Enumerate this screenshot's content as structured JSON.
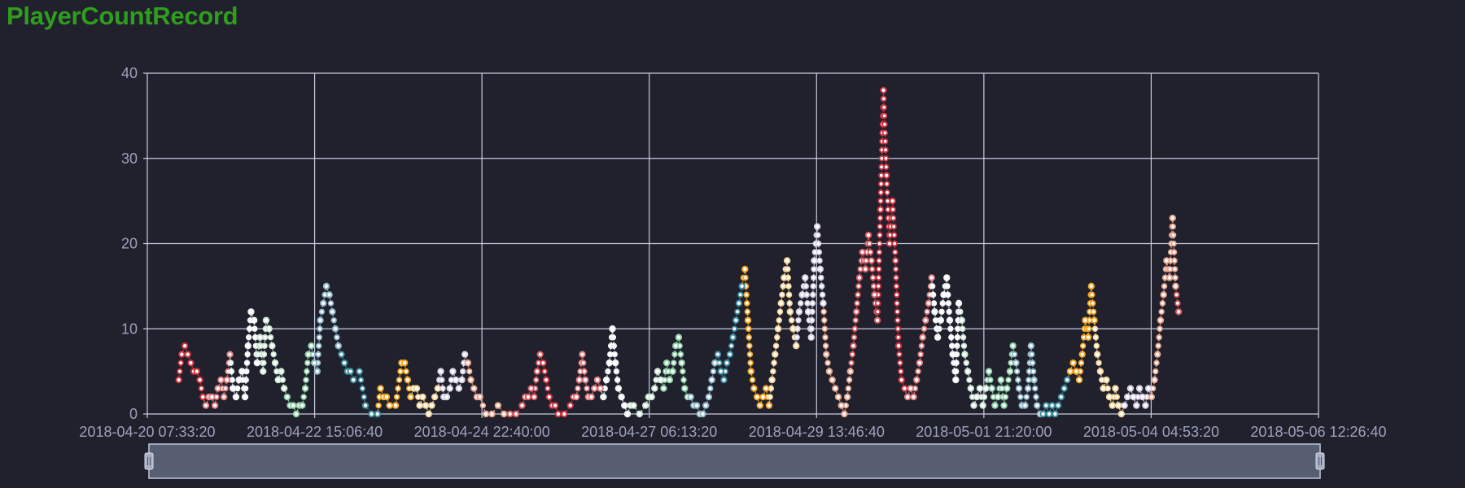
{
  "title": "PlayerCountRecord",
  "colors": {
    "background": "#21202d",
    "grid": "#c7cde0",
    "title": "#2f9d1e",
    "axis_text": "#9ba3bd",
    "slider_fill": "#575e72",
    "slider_border": "#b8bfd4",
    "palette": [
      "#d23240",
      "#e57e80",
      "#f0f4f6",
      "#cfe7d6",
      "#8fd2a8",
      "#8fb7c7",
      "#3a8ea0",
      "#f5a623",
      "#f6d79a",
      "#d8d2e6",
      "#e8a38b",
      "#d8595f"
    ]
  },
  "chart_data": {
    "type": "scatter",
    "title": "PlayerCountRecord",
    "xlabel": "",
    "ylabel": "",
    "grid": true,
    "legend": "none",
    "x_tick_labels": [
      "2018-04-20 07:33:20",
      "2018-04-22 15:06:40",
      "2018-04-24 22:40:00",
      "2018-04-27 06:13:20",
      "2018-04-29 13:46:40",
      "2018-05-01 21:20:00",
      "2018-05-04 04:53:20",
      "2018-05-06 12:26:40"
    ],
    "y_ticks": [
      0,
      10,
      20,
      30,
      40
    ],
    "xlim": [
      "2018-04-20 07:33:20",
      "2018-05-06 12:26:40"
    ],
    "ylim": [
      0,
      40
    ],
    "data_zoom": {
      "start_percent": 0,
      "end_percent": 100
    },
    "points_date_value": [
      [
        "2018-04-20 18:00",
        4
      ],
      [
        "2018-04-20 19:00",
        7
      ],
      [
        "2018-04-20 20:00",
        8
      ],
      [
        "2018-04-20 21:00",
        7
      ],
      [
        "2018-04-20 22:00",
        6
      ],
      [
        "2018-04-20 23:00",
        5
      ],
      [
        "2018-04-21 00:00",
        5
      ],
      [
        "2018-04-21 01:00",
        4
      ],
      [
        "2018-04-21 02:00",
        2
      ],
      [
        "2018-04-21 03:00",
        1
      ],
      [
        "2018-04-21 04:00",
        2
      ],
      [
        "2018-04-21 05:00",
        2
      ],
      [
        "2018-04-21 06:00",
        1
      ],
      [
        "2018-04-21 07:00",
        3
      ],
      [
        "2018-04-21 08:00",
        4
      ],
      [
        "2018-04-21 09:00",
        2
      ],
      [
        "2018-04-21 10:00",
        4
      ],
      [
        "2018-04-21 11:00",
        7
      ],
      [
        "2018-04-21 12:00",
        3
      ],
      [
        "2018-04-21 13:00",
        2
      ],
      [
        "2018-04-21 14:00",
        4
      ],
      [
        "2018-04-21 15:00",
        5
      ],
      [
        "2018-04-21 16:00",
        2
      ],
      [
        "2018-04-21 17:00",
        8
      ],
      [
        "2018-04-21 18:00",
        12
      ],
      [
        "2018-04-21 19:00",
        11
      ],
      [
        "2018-04-21 20:00",
        6
      ],
      [
        "2018-04-21 21:00",
        9
      ],
      [
        "2018-04-21 22:00",
        5
      ],
      [
        "2018-04-21 23:00",
        11
      ],
      [
        "2018-04-22 00:00",
        10
      ],
      [
        "2018-04-22 01:00",
        8
      ],
      [
        "2018-04-22 02:00",
        6
      ],
      [
        "2018-04-22 03:00",
        4
      ],
      [
        "2018-04-22 04:00",
        5
      ],
      [
        "2018-04-22 05:00",
        3
      ],
      [
        "2018-04-22 06:00",
        2
      ],
      [
        "2018-04-22 07:00",
        1
      ],
      [
        "2018-04-22 08:00",
        1
      ],
      [
        "2018-04-22 09:00",
        0
      ],
      [
        "2018-04-22 10:00",
        1
      ],
      [
        "2018-04-22 11:00",
        1
      ],
      [
        "2018-04-22 12:00",
        3
      ],
      [
        "2018-04-22 13:00",
        7
      ],
      [
        "2018-04-22 14:00",
        8
      ],
      [
        "2018-04-22 15:00",
        6
      ],
      [
        "2018-04-22 16:00",
        5
      ],
      [
        "2018-04-22 17:00",
        11
      ],
      [
        "2018-04-22 18:00",
        13
      ],
      [
        "2018-04-22 19:00",
        15
      ],
      [
        "2018-04-22 20:00",
        14
      ],
      [
        "2018-04-22 21:00",
        12
      ],
      [
        "2018-04-22 22:00",
        10
      ],
      [
        "2018-04-22 23:00",
        8
      ],
      [
        "2018-04-23 00:00",
        7
      ],
      [
        "2018-04-23 01:00",
        6
      ],
      [
        "2018-04-23 02:00",
        5
      ],
      [
        "2018-04-23 03:00",
        5
      ],
      [
        "2018-04-23 04:00",
        4
      ],
      [
        "2018-04-23 06:00",
        5
      ],
      [
        "2018-04-23 08:00",
        1
      ],
      [
        "2018-04-23 10:00",
        0
      ],
      [
        "2018-04-23 12:00",
        0
      ],
      [
        "2018-04-23 13:00",
        3
      ],
      [
        "2018-04-23 14:00",
        2
      ],
      [
        "2018-04-23 15:00",
        2
      ],
      [
        "2018-04-23 16:00",
        1
      ],
      [
        "2018-04-23 18:00",
        1
      ],
      [
        "2018-04-23 20:00",
        6
      ],
      [
        "2018-04-23 21:00",
        6
      ],
      [
        "2018-04-23 22:00",
        4
      ],
      [
        "2018-04-23 23:00",
        2
      ],
      [
        "2018-04-24 00:00",
        3
      ],
      [
        "2018-04-24 01:00",
        3
      ],
      [
        "2018-04-24 02:00",
        1
      ],
      [
        "2018-04-24 03:00",
        2
      ],
      [
        "2018-04-24 04:00",
        1
      ],
      [
        "2018-04-24 05:00",
        0
      ],
      [
        "2018-04-24 06:00",
        1
      ],
      [
        "2018-04-24 07:00",
        2
      ],
      [
        "2018-04-24 08:00",
        3
      ],
      [
        "2018-04-24 09:00",
        5
      ],
      [
        "2018-04-24 10:00",
        2
      ],
      [
        "2018-04-24 11:00",
        2
      ],
      [
        "2018-04-24 12:00",
        3
      ],
      [
        "2018-04-24 13:00",
        5
      ],
      [
        "2018-04-24 14:00",
        4
      ],
      [
        "2018-04-24 15:00",
        3
      ],
      [
        "2018-04-24 16:00",
        4
      ],
      [
        "2018-04-24 17:00",
        7
      ],
      [
        "2018-04-24 18:00",
        6
      ],
      [
        "2018-04-24 19:00",
        4
      ],
      [
        "2018-04-24 20:00",
        3
      ],
      [
        "2018-04-24 21:00",
        2
      ],
      [
        "2018-04-24 22:00",
        2
      ],
      [
        "2018-04-25 00:00",
        0
      ],
      [
        "2018-04-25 02:00",
        0
      ],
      [
        "2018-04-25 04:00",
        1
      ],
      [
        "2018-04-25 06:00",
        0
      ],
      [
        "2018-04-25 08:00",
        0
      ],
      [
        "2018-04-25 10:00",
        0
      ],
      [
        "2018-04-25 12:00",
        1
      ],
      [
        "2018-04-25 13:00",
        2
      ],
      [
        "2018-04-25 14:00",
        2
      ],
      [
        "2018-04-25 15:00",
        3
      ],
      [
        "2018-04-25 16:00",
        2
      ],
      [
        "2018-04-25 17:00",
        5
      ],
      [
        "2018-04-25 18:00",
        7
      ],
      [
        "2018-04-25 19:00",
        6
      ],
      [
        "2018-04-25 20:00",
        4
      ],
      [
        "2018-04-25 21:00",
        2
      ],
      [
        "2018-04-25 22:00",
        1
      ],
      [
        "2018-04-25 23:00",
        1
      ],
      [
        "2018-04-26 00:00",
        0
      ],
      [
        "2018-04-26 02:00",
        0
      ],
      [
        "2018-04-26 04:00",
        1
      ],
      [
        "2018-04-26 05:00",
        2
      ],
      [
        "2018-04-26 06:00",
        2
      ],
      [
        "2018-04-26 07:00",
        4
      ],
      [
        "2018-04-26 08:00",
        7
      ],
      [
        "2018-04-26 09:00",
        4
      ],
      [
        "2018-04-26 10:00",
        2
      ],
      [
        "2018-04-26 11:00",
        2
      ],
      [
        "2018-04-26 12:00",
        3
      ],
      [
        "2018-04-26 13:00",
        4
      ],
      [
        "2018-04-26 14:00",
        3
      ],
      [
        "2018-04-26 15:00",
        2
      ],
      [
        "2018-04-26 16:00",
        4
      ],
      [
        "2018-04-26 17:00",
        6
      ],
      [
        "2018-04-26 18:00",
        10
      ],
      [
        "2018-04-26 19:00",
        6
      ],
      [
        "2018-04-26 20:00",
        3
      ],
      [
        "2018-04-26 21:00",
        2
      ],
      [
        "2018-04-26 22:00",
        1
      ],
      [
        "2018-04-26 23:00",
        0
      ],
      [
        "2018-04-27 00:00",
        1
      ],
      [
        "2018-04-27 01:00",
        1
      ],
      [
        "2018-04-27 03:00",
        0
      ],
      [
        "2018-04-27 05:00",
        1
      ],
      [
        "2018-04-27 06:00",
        2
      ],
      [
        "2018-04-27 07:00",
        2
      ],
      [
        "2018-04-27 08:00",
        3
      ],
      [
        "2018-04-27 09:00",
        5
      ],
      [
        "2018-04-27 10:00",
        4
      ],
      [
        "2018-04-27 11:00",
        3
      ],
      [
        "2018-04-27 12:00",
        6
      ],
      [
        "2018-04-27 13:00",
        4
      ],
      [
        "2018-04-27 14:00",
        5
      ],
      [
        "2018-04-27 15:00",
        8
      ],
      [
        "2018-04-27 16:00",
        9
      ],
      [
        "2018-04-27 17:00",
        6
      ],
      [
        "2018-04-27 18:00",
        3
      ],
      [
        "2018-04-27 19:00",
        2
      ],
      [
        "2018-04-27 20:00",
        2
      ],
      [
        "2018-04-27 21:00",
        1
      ],
      [
        "2018-04-27 22:00",
        1
      ],
      [
        "2018-04-27 23:00",
        0
      ],
      [
        "2018-04-28 00:00",
        0
      ],
      [
        "2018-04-28 01:00",
        1
      ],
      [
        "2018-04-28 02:00",
        2
      ],
      [
        "2018-04-28 03:00",
        4
      ],
      [
        "2018-04-28 04:00",
        6
      ],
      [
        "2018-04-28 05:00",
        7
      ],
      [
        "2018-04-28 06:00",
        5
      ],
      [
        "2018-04-28 07:00",
        4
      ],
      [
        "2018-04-28 08:00",
        6
      ],
      [
        "2018-04-28 09:00",
        7
      ],
      [
        "2018-04-28 10:00",
        9
      ],
      [
        "2018-04-28 11:00",
        11
      ],
      [
        "2018-04-28 12:00",
        13
      ],
      [
        "2018-04-28 13:00",
        15
      ],
      [
        "2018-04-28 14:00",
        17
      ],
      [
        "2018-04-28 15:00",
        11
      ],
      [
        "2018-04-28 16:00",
        5
      ],
      [
        "2018-04-28 17:00",
        3
      ],
      [
        "2018-04-28 18:00",
        2
      ],
      [
        "2018-04-28 19:00",
        1
      ],
      [
        "2018-04-28 20:00",
        2
      ],
      [
        "2018-04-28 21:00",
        3
      ],
      [
        "2018-04-28 22:00",
        1
      ],
      [
        "2018-04-28 23:00",
        4
      ],
      [
        "2018-04-29 00:00",
        7
      ],
      [
        "2018-04-29 01:00",
        10
      ],
      [
        "2018-04-29 02:00",
        13
      ],
      [
        "2018-04-29 03:00",
        16
      ],
      [
        "2018-04-29 04:00",
        18
      ],
      [
        "2018-04-29 05:00",
        12
      ],
      [
        "2018-04-29 06:00",
        10
      ],
      [
        "2018-04-29 07:00",
        8
      ],
      [
        "2018-04-29 08:00",
        12
      ],
      [
        "2018-04-29 09:00",
        14
      ],
      [
        "2018-04-29 10:00",
        16
      ],
      [
        "2018-04-29 11:00",
        12
      ],
      [
        "2018-04-29 12:00",
        9
      ],
      [
        "2018-04-29 13:00",
        18
      ],
      [
        "2018-04-29 14:00",
        22
      ],
      [
        "2018-04-29 15:00",
        17
      ],
      [
        "2018-04-29 16:00",
        13
      ],
      [
        "2018-04-29 17:00",
        7
      ],
      [
        "2018-04-29 18:00",
        5
      ],
      [
        "2018-04-29 19:00",
        4
      ],
      [
        "2018-04-29 20:00",
        3
      ],
      [
        "2018-04-29 21:00",
        2
      ],
      [
        "2018-04-29 22:00",
        1
      ],
      [
        "2018-04-29 23:00",
        0
      ],
      [
        "2018-04-30 00:00",
        2
      ],
      [
        "2018-04-30 01:00",
        5
      ],
      [
        "2018-04-30 02:00",
        8
      ],
      [
        "2018-04-30 03:00",
        12
      ],
      [
        "2018-04-30 04:00",
        16
      ],
      [
        "2018-04-30 05:00",
        19
      ],
      [
        "2018-04-30 06:00",
        17
      ],
      [
        "2018-04-30 07:00",
        21
      ],
      [
        "2018-04-30 08:00",
        18
      ],
      [
        "2018-04-30 09:00",
        14
      ],
      [
        "2018-04-30 10:00",
        11
      ],
      [
        "2018-04-30 11:00",
        24
      ],
      [
        "2018-04-30 12:00",
        38
      ],
      [
        "2018-04-30 13:00",
        28
      ],
      [
        "2018-04-30 14:00",
        20
      ],
      [
        "2018-04-30 15:00",
        25
      ],
      [
        "2018-04-30 16:00",
        18
      ],
      [
        "2018-04-30 17:00",
        8
      ],
      [
        "2018-04-30 18:00",
        4
      ],
      [
        "2018-04-30 19:00",
        3
      ],
      [
        "2018-04-30 20:00",
        2
      ],
      [
        "2018-04-30 21:00",
        3
      ],
      [
        "2018-04-30 22:00",
        2
      ],
      [
        "2018-04-30 23:00",
        4
      ],
      [
        "2018-05-01 00:00",
        6
      ],
      [
        "2018-05-01 01:00",
        9
      ],
      [
        "2018-05-01 02:00",
        11
      ],
      [
        "2018-05-01 03:00",
        13
      ],
      [
        "2018-05-01 04:00",
        16
      ],
      [
        "2018-05-01 05:00",
        12
      ],
      [
        "2018-05-01 06:00",
        9
      ],
      [
        "2018-05-01 07:00",
        11
      ],
      [
        "2018-05-01 08:00",
        14
      ],
      [
        "2018-05-01 09:00",
        16
      ],
      [
        "2018-05-01 10:00",
        11
      ],
      [
        "2018-05-01 11:00",
        7
      ],
      [
        "2018-05-01 12:00",
        4
      ],
      [
        "2018-05-01 13:00",
        13
      ],
      [
        "2018-05-01 14:00",
        11
      ],
      [
        "2018-05-01 15:00",
        7
      ],
      [
        "2018-05-01 16:00",
        5
      ],
      [
        "2018-05-01 17:00",
        3
      ],
      [
        "2018-05-01 18:00",
        1
      ],
      [
        "2018-05-01 19:00",
        2
      ],
      [
        "2018-05-01 20:00",
        3
      ],
      [
        "2018-05-01 21:00",
        1
      ],
      [
        "2018-05-01 22:00",
        3
      ],
      [
        "2018-05-01 23:00",
        5
      ],
      [
        "2018-05-02 00:00",
        3
      ],
      [
        "2018-05-02 01:00",
        1
      ],
      [
        "2018-05-02 02:00",
        2
      ],
      [
        "2018-05-02 03:00",
        4
      ],
      [
        "2018-05-02 04:00",
        1
      ],
      [
        "2018-05-02 05:00",
        3
      ],
      [
        "2018-05-02 06:00",
        5
      ],
      [
        "2018-05-02 07:00",
        8
      ],
      [
        "2018-05-02 08:00",
        6
      ],
      [
        "2018-05-02 09:00",
        3
      ],
      [
        "2018-05-02 10:00",
        1
      ],
      [
        "2018-05-02 11:00",
        1
      ],
      [
        "2018-05-02 12:00",
        3
      ],
      [
        "2018-05-02 13:00",
        8
      ],
      [
        "2018-05-02 14:00",
        4
      ],
      [
        "2018-05-02 15:00",
        1
      ],
      [
        "2018-05-02 16:00",
        0
      ],
      [
        "2018-05-02 17:00",
        0
      ],
      [
        "2018-05-02 18:00",
        1
      ],
      [
        "2018-05-02 19:00",
        0
      ],
      [
        "2018-05-02 20:00",
        1
      ],
      [
        "2018-05-02 21:00",
        0
      ],
      [
        "2018-05-02 22:00",
        1
      ],
      [
        "2018-05-02 23:00",
        2
      ],
      [
        "2018-05-03 00:00",
        3
      ],
      [
        "2018-05-03 01:00",
        4
      ],
      [
        "2018-05-03 02:00",
        5
      ],
      [
        "2018-05-03 03:00",
        6
      ],
      [
        "2018-05-03 04:00",
        5
      ],
      [
        "2018-05-03 05:00",
        4
      ],
      [
        "2018-05-03 06:00",
        7
      ],
      [
        "2018-05-03 07:00",
        11
      ],
      [
        "2018-05-03 08:00",
        9
      ],
      [
        "2018-05-03 09:00",
        15
      ],
      [
        "2018-05-03 10:00",
        11
      ],
      [
        "2018-05-03 11:00",
        7
      ],
      [
        "2018-05-03 12:00",
        5
      ],
      [
        "2018-05-03 13:00",
        3
      ],
      [
        "2018-05-03 14:00",
        4
      ],
      [
        "2018-05-03 15:00",
        2
      ],
      [
        "2018-05-03 16:00",
        1
      ],
      [
        "2018-05-03 17:00",
        3
      ],
      [
        "2018-05-03 18:00",
        1
      ],
      [
        "2018-05-03 19:00",
        0
      ],
      [
        "2018-05-03 20:00",
        1
      ],
      [
        "2018-05-03 21:00",
        2
      ],
      [
        "2018-05-03 22:00",
        3
      ],
      [
        "2018-05-03 23:00",
        2
      ],
      [
        "2018-05-04 00:00",
        1
      ],
      [
        "2018-05-04 01:00",
        3
      ],
      [
        "2018-05-04 02:00",
        2
      ],
      [
        "2018-05-04 03:00",
        1
      ],
      [
        "2018-05-04 04:00",
        3
      ],
      [
        "2018-05-04 05:00",
        2
      ],
      [
        "2018-05-04 06:00",
        4
      ],
      [
        "2018-05-04 07:00",
        7
      ],
      [
        "2018-05-04 08:00",
        11
      ],
      [
        "2018-05-04 09:00",
        14
      ],
      [
        "2018-05-04 10:00",
        18
      ],
      [
        "2018-05-04 11:00",
        16
      ],
      [
        "2018-05-04 12:00",
        23
      ],
      [
        "2018-05-04 13:00",
        15
      ],
      [
        "2018-05-04 14:00",
        12
      ]
    ]
  }
}
